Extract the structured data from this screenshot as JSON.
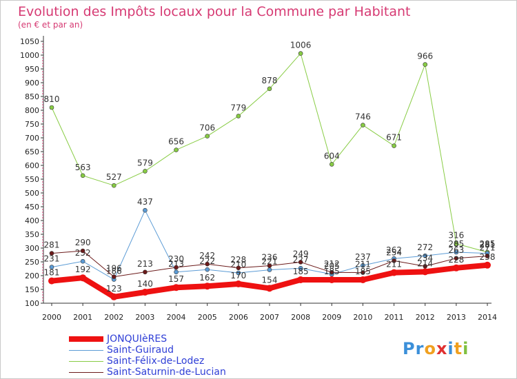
{
  "chart_data": {
    "type": "line",
    "title": "Evolution des Impôts locaux pour la Commune par Habitant",
    "subtitle": "(en € et par an)",
    "xlabel": "",
    "ylabel": "",
    "x": [
      "2000",
      "2001",
      "2002",
      "2003",
      "2004",
      "2005",
      "2006",
      "2007",
      "2008",
      "2009",
      "2010",
      "2011",
      "2012",
      "2013",
      "2014"
    ],
    "ylim": [
      100,
      1050
    ],
    "yticks": [
      100,
      150,
      200,
      250,
      300,
      350,
      400,
      450,
      500,
      550,
      600,
      650,
      700,
      750,
      800,
      850,
      900,
      950,
      1000,
      1050
    ],
    "grid": false,
    "legend_position": "bottom-left",
    "series": [
      {
        "name": "Saint-Félix-de-Lodez",
        "color": "#88cc44",
        "width": 1,
        "values": [
          810,
          563,
          527,
          579,
          656,
          706,
          779,
          878,
          1006,
          604,
          746,
          671,
          966,
          316,
          285
        ]
      },
      {
        "name": "Saint-Guiraud",
        "color": "#5b9bd5",
        "width": 1,
        "values": [
          231,
          252,
          186,
          437,
          213,
          222,
          210,
          221,
          227,
          205,
          237,
          262,
          272,
          285,
          281
        ]
      },
      {
        "name": "Saint-Saturnin-de-Lucian",
        "color": "#6b1a1a",
        "width": 1,
        "values": [
          281,
          290,
          196,
          213,
          230,
          242,
          228,
          236,
          249,
          212,
          211,
          254,
          234,
          263,
          271
        ]
      },
      {
        "name": "JONQUIèRES",
        "color": "#ee1111",
        "width": 8,
        "values": [
          181,
          192,
          123,
          140,
          157,
          162,
          170,
          154,
          185,
          185,
          185,
          211,
          214,
          228,
          238
        ]
      }
    ]
  },
  "legend": {
    "items": [
      {
        "label": "JONQUIèRES",
        "color": "#ee1111",
        "thickness": 8
      },
      {
        "label": "Saint-Guiraud",
        "color": "#5b9bd5",
        "thickness": 1
      },
      {
        "label": "Saint-Félix-de-Lodez",
        "color": "#88cc44",
        "thickness": 1
      },
      {
        "label": "Saint-Saturnin-de-Lucian",
        "color": "#6b1a1a",
        "thickness": 1
      }
    ]
  },
  "logo": {
    "letters": [
      "P",
      "r",
      "o",
      "x",
      "i",
      "t",
      "i"
    ],
    "colors": [
      "#3b8fd9",
      "#3b8fd9",
      "#f0a020",
      "#e03030",
      "#3b8fd9",
      "#f0a020",
      "#80c040"
    ]
  }
}
